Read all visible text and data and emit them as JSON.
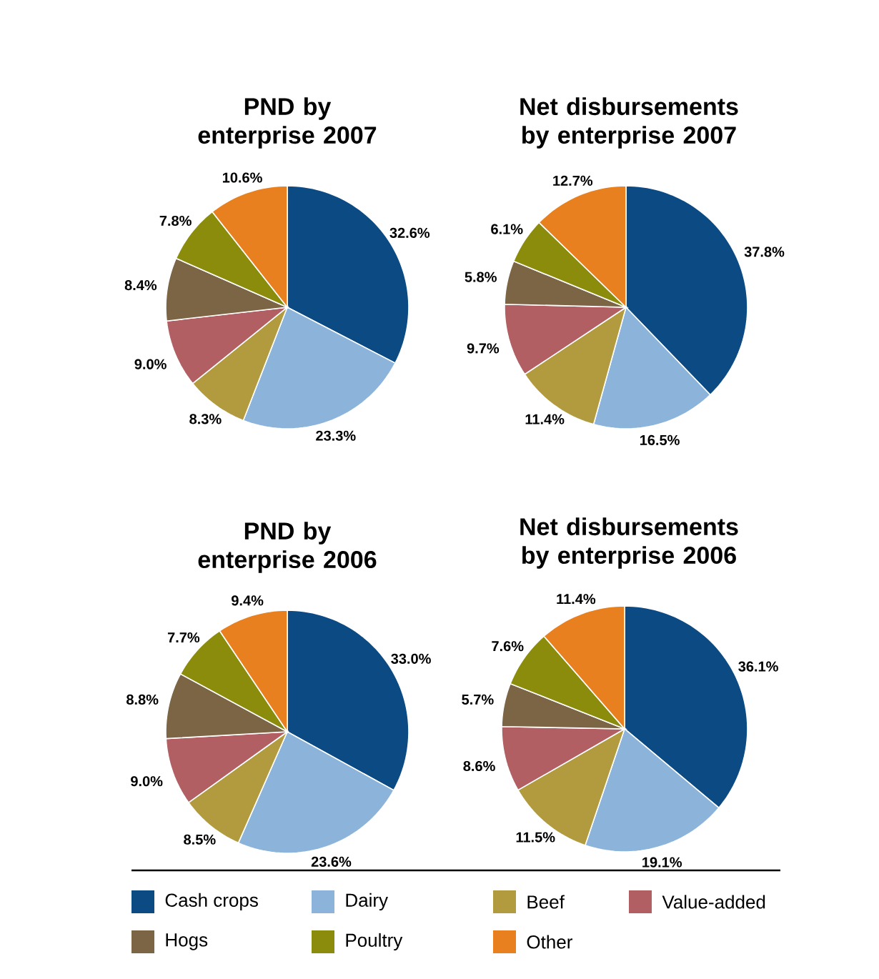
{
  "chart_data": [
    {
      "type": "pie",
      "title": "PND by enterprise 2007",
      "categories": [
        null,
        null,
        null,
        null,
        null,
        null,
        null
      ],
      "values": [
        32.6,
        23.3,
        8.3,
        9.0,
        8.4,
        7.8,
        10.6
      ],
      "value_labels": [
        "32.6%",
        "23.3%",
        "8.3%",
        "9.0%",
        "8.4%",
        "7.8%",
        "10.6%"
      ],
      "colors": [
        "#0b4a82",
        "#8cb4da",
        "#b29b3e",
        "#b25f63",
        "#7b6545",
        "#8c8c0c",
        "#e8801f"
      ]
    },
    {
      "type": "pie",
      "title": "Net disbursements by enterprise 2007",
      "categories": [
        null,
        null,
        null,
        null,
        null,
        null,
        null
      ],
      "values": [
        37.8,
        16.5,
        11.4,
        9.7,
        5.8,
        6.1,
        12.7
      ],
      "value_labels": [
        "37.8%",
        "16.5%",
        "11.4%",
        "9.7%",
        "5.8%",
        "6.1%",
        "12.7%"
      ],
      "colors": [
        "#0b4a82",
        "#8cb4da",
        "#b29b3e",
        "#b25f63",
        "#7b6545",
        "#8c8c0c",
        "#e8801f"
      ]
    },
    {
      "type": "pie",
      "title": "PND by enterprise 2006",
      "categories": [
        null,
        null,
        null,
        null,
        null,
        null,
        null
      ],
      "values": [
        33.0,
        23.6,
        8.5,
        9.0,
        8.8,
        7.7,
        9.4
      ],
      "value_labels": [
        "33.0%",
        "23.6%",
        "8.5%",
        "9.0%",
        "8.8%",
        "7.7%",
        "9.4%"
      ],
      "colors": [
        "#0b4a82",
        "#8cb4da",
        "#b29b3e",
        "#b25f63",
        "#7b6545",
        "#8c8c0c",
        "#e8801f"
      ]
    },
    {
      "type": "pie",
      "title": "Net disbursements by enterprise 2006",
      "categories": [
        "Cash crops",
        "Dairy",
        "Beef",
        "Value-added",
        "Hogs",
        "Poultry",
        "Other"
      ],
      "values": [
        36.1,
        19.1,
        11.5,
        8.6,
        5.7,
        7.6,
        11.4
      ],
      "value_labels": [
        "36.1%",
        "19.1%",
        "11.5%",
        "8.6%",
        "5.7%",
        "7.6%",
        "11.4%"
      ],
      "colors": [
        "#0b4a82",
        "#8cb4da",
        "#b29b3e",
        "#b25f63",
        "#7b6545",
        "#8c8c0c",
        "#e8801f"
      ],
      "legend": "bottom"
    }
  ]
}
